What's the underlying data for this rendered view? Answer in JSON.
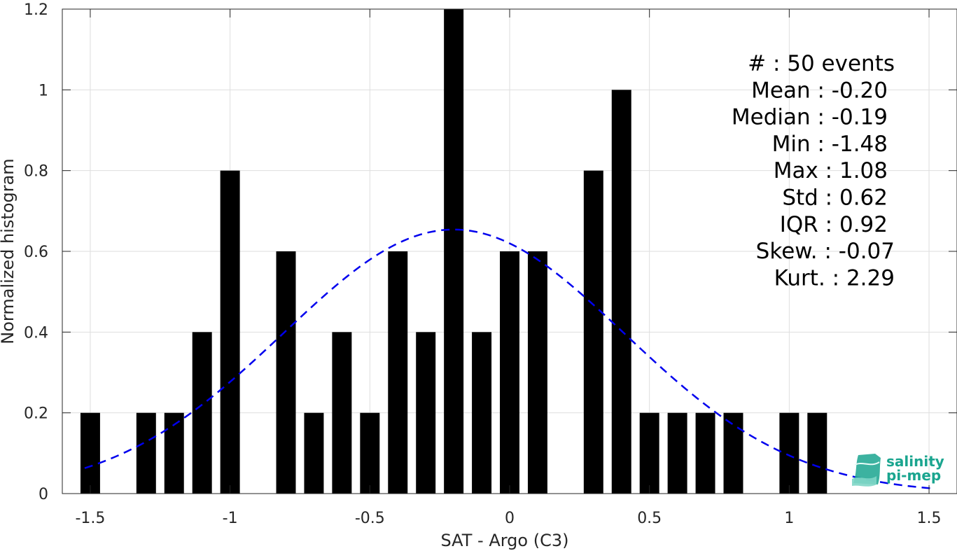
{
  "chart_data": {
    "type": "bar",
    "xlabel": "SAT - Argo (C3)",
    "ylabel": "Normalized histogram",
    "xlim": [
      -1.6,
      1.6
    ],
    "ylim": [
      0,
      1.2
    ],
    "xticks": [
      -1.5,
      -1,
      -0.5,
      0,
      0.5,
      1,
      1.5
    ],
    "xtick_labels": [
      "-1.5",
      "-1",
      "-0.5",
      "0",
      "0.5",
      "1",
      "1.5"
    ],
    "yticks": [
      0,
      0.2,
      0.4,
      0.6,
      0.8,
      1,
      1.2
    ],
    "ytick_labels": [
      "0",
      "0.2",
      "0.4",
      "0.6",
      "0.8",
      "1",
      "1.2"
    ],
    "grid": true,
    "bar_width": 0.07,
    "bar_color": "#000000",
    "bars": [
      {
        "x": -1.5,
        "value": 0.2
      },
      {
        "x": -1.3,
        "value": 0.2
      },
      {
        "x": -1.2,
        "value": 0.2
      },
      {
        "x": -1.1,
        "value": 0.4
      },
      {
        "x": -1.0,
        "value": 0.8
      },
      {
        "x": -0.8,
        "value": 0.6
      },
      {
        "x": -0.7,
        "value": 0.2
      },
      {
        "x": -0.6,
        "value": 0.4
      },
      {
        "x": -0.5,
        "value": 0.2
      },
      {
        "x": -0.4,
        "value": 0.6
      },
      {
        "x": -0.3,
        "value": 0.4
      },
      {
        "x": -0.2,
        "value": 1.2
      },
      {
        "x": -0.1,
        "value": 0.4
      },
      {
        "x": 0.0,
        "value": 0.6
      },
      {
        "x": 0.1,
        "value": 0.6
      },
      {
        "x": 0.3,
        "value": 0.8
      },
      {
        "x": 0.4,
        "value": 1.0
      },
      {
        "x": 0.5,
        "value": 0.2
      },
      {
        "x": 0.6,
        "value": 0.2
      },
      {
        "x": 0.7,
        "value": 0.2
      },
      {
        "x": 0.8,
        "value": 0.2
      },
      {
        "x": 1.0,
        "value": 0.2
      },
      {
        "x": 1.1,
        "value": 0.2
      }
    ],
    "fit_curve": {
      "style": "dashed",
      "color": "#0000ee",
      "mean": -0.2,
      "std": 0.61,
      "x_range": [
        -1.52,
        1.52
      ]
    },
    "annotations": [
      "#  : 50 events",
      "Mean : -0.20",
      "Median : -0.19",
      "Min : -1.48",
      "Max : 1.08",
      "Std : 0.62",
      "IQR : 0.92",
      "Skew. : -0.07",
      "Kurt. : 2.29"
    ]
  },
  "logo": {
    "line1": "salinity",
    "line2": "pi-mep",
    "color": "#1aa58f"
  }
}
